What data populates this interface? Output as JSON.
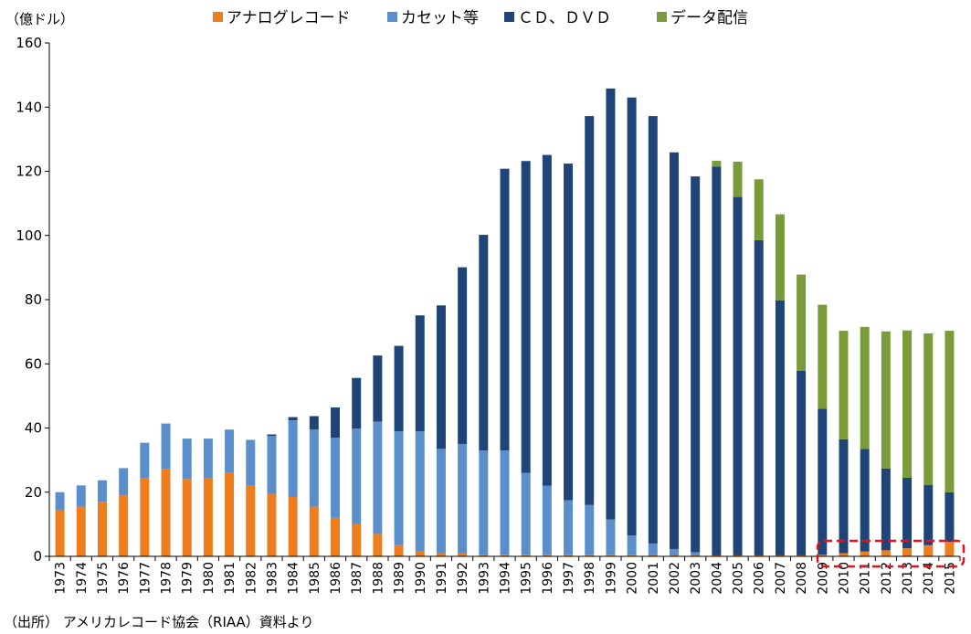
{
  "chart_data": {
    "type": "bar",
    "stacked": true,
    "unit_label": "（億ドル）",
    "source_note": "（出所） アメリカレコード協会（RIAA）資料より",
    "ylim": [
      0,
      160
    ],
    "yticks": [
      0,
      20,
      40,
      60,
      80,
      100,
      120,
      140,
      160
    ],
    "grid": false,
    "legend_position": "top",
    "categories": [
      "1973",
      "1974",
      "1975",
      "1976",
      "1977",
      "1978",
      "1979",
      "1980",
      "1981",
      "1982",
      "1983",
      "1984",
      "1985",
      "1986",
      "1987",
      "1988",
      "1989",
      "1990",
      "1991",
      "1992",
      "1993",
      "1994",
      "1995",
      "1996",
      "1997",
      "1998",
      "1999",
      "2000",
      "2001",
      "2002",
      "2003",
      "2004",
      "2005",
      "2006",
      "2007",
      "2008",
      "2009",
      "2010",
      "2011",
      "2012",
      "2013",
      "2014",
      "2015"
    ],
    "series": [
      {
        "name": "アナログレコード",
        "color": "#ED7D1D",
        "values": [
          14.4,
          15.5,
          17.0,
          19.0,
          24.4,
          27.3,
          24.1,
          24.3,
          26.0,
          22.0,
          19.5,
          18.5,
          15.5,
          12.0,
          10.0,
          7.0,
          3.5,
          1.5,
          1.0,
          1.0,
          0.5,
          0.5,
          0.5,
          0.5,
          0.5,
          0.5,
          0.5,
          0.5,
          0.3,
          0.3,
          0.3,
          0.3,
          0.3,
          0.3,
          0.3,
          0.3,
          0.5,
          1.0,
          1.5,
          1.9,
          2.5,
          3.5,
          4.5
        ]
      },
      {
        "name": "カセット等",
        "color": "#5B8FCB",
        "values": [
          5.6,
          6.6,
          6.7,
          8.5,
          11.0,
          14.1,
          12.6,
          12.4,
          13.5,
          14.3,
          18.0,
          23.9,
          24.0,
          25.0,
          29.8,
          35.0,
          35.5,
          37.5,
          32.5,
          34.0,
          32.5,
          32.5,
          25.5,
          21.5,
          17.0,
          15.5,
          11.0,
          6.0,
          3.7,
          2.0,
          1.0,
          0,
          0,
          0,
          0,
          0,
          0,
          0,
          0,
          0,
          0,
          0,
          0
        ]
      },
      {
        "name": "ＣＤ、ＤＶＤ",
        "color": "#1F4477",
        "values": [
          0,
          0,
          0,
          0,
          0,
          0,
          0,
          0,
          0,
          0,
          0.5,
          1.0,
          4.2,
          9.4,
          15.8,
          20.6,
          26.6,
          36.1,
          44.7,
          55.1,
          67.2,
          87.8,
          97.2,
          103.1,
          104.9,
          121.2,
          134.3,
          136.5,
          133.2,
          123.6,
          117.1,
          121.2,
          111.7,
          98.2,
          79.5,
          57.5,
          45.5,
          35.5,
          32.0,
          25.5,
          22.0,
          18.8,
          15.5
        ]
      },
      {
        "name": "データ配信",
        "color": "#7A9B3A",
        "values": [
          0,
          0,
          0,
          0,
          0,
          0,
          0,
          0,
          0,
          0,
          0,
          0,
          0,
          0,
          0,
          0,
          0,
          0,
          0,
          0,
          0,
          0,
          0,
          0,
          0,
          0,
          0,
          0,
          0,
          0,
          0,
          1.8,
          11.0,
          19.0,
          26.8,
          30.0,
          32.4,
          33.8,
          38.0,
          42.7,
          45.9,
          47.2,
          50.3
        ]
      }
    ]
  }
}
